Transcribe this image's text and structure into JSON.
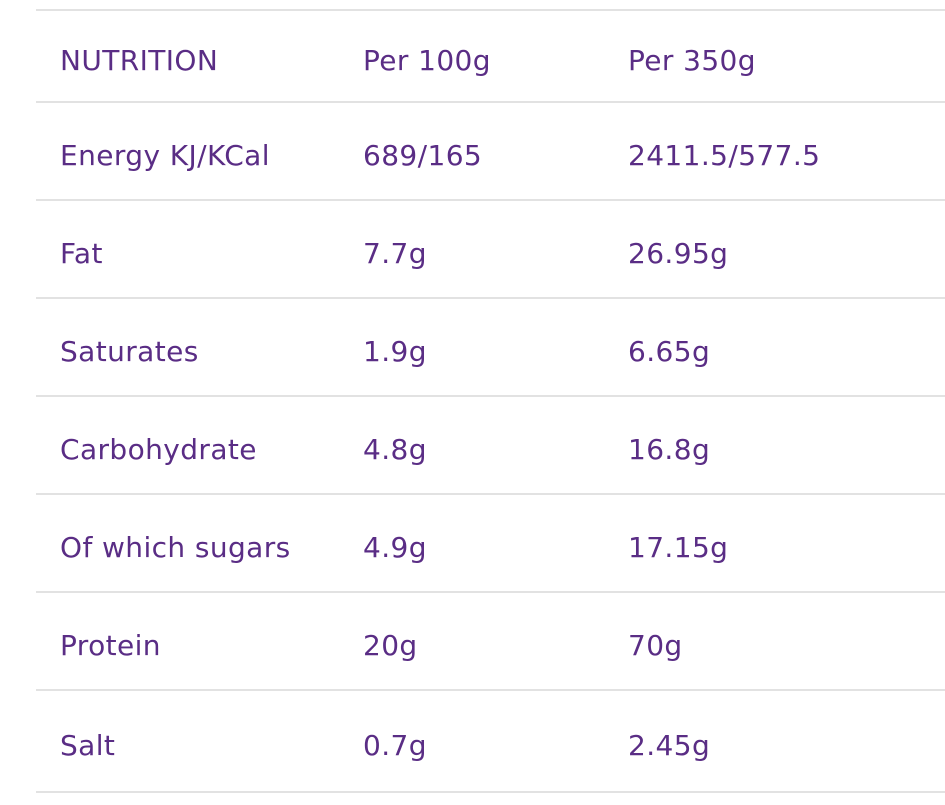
{
  "chart_data": {
    "type": "table",
    "title": "NUTRITION",
    "columns": [
      "NUTRITION",
      "Per 100g",
      "Per 350g"
    ],
    "rows": [
      [
        "Energy KJ/KCal",
        "689/165",
        "2411.5/577.5"
      ],
      [
        "Fat",
        "7.7g",
        "26.95g"
      ],
      [
        "Saturates",
        "1.9g",
        "6.65g"
      ],
      [
        "Carbohydrate",
        "4.8g",
        "16.8g"
      ],
      [
        "Of which sugars",
        "4.9g",
        "17.15g"
      ],
      [
        "Protein",
        "20g",
        "70g"
      ],
      [
        "Salt",
        "0.7g",
        "2.45g"
      ]
    ],
    "layout": {
      "grid": "horizontal-dividers-only",
      "header_position": "top",
      "column_alignment": "left"
    },
    "colors": {
      "text": "#5a2d85",
      "divider": "#e2e2e2",
      "background": "#ffffff"
    }
  }
}
